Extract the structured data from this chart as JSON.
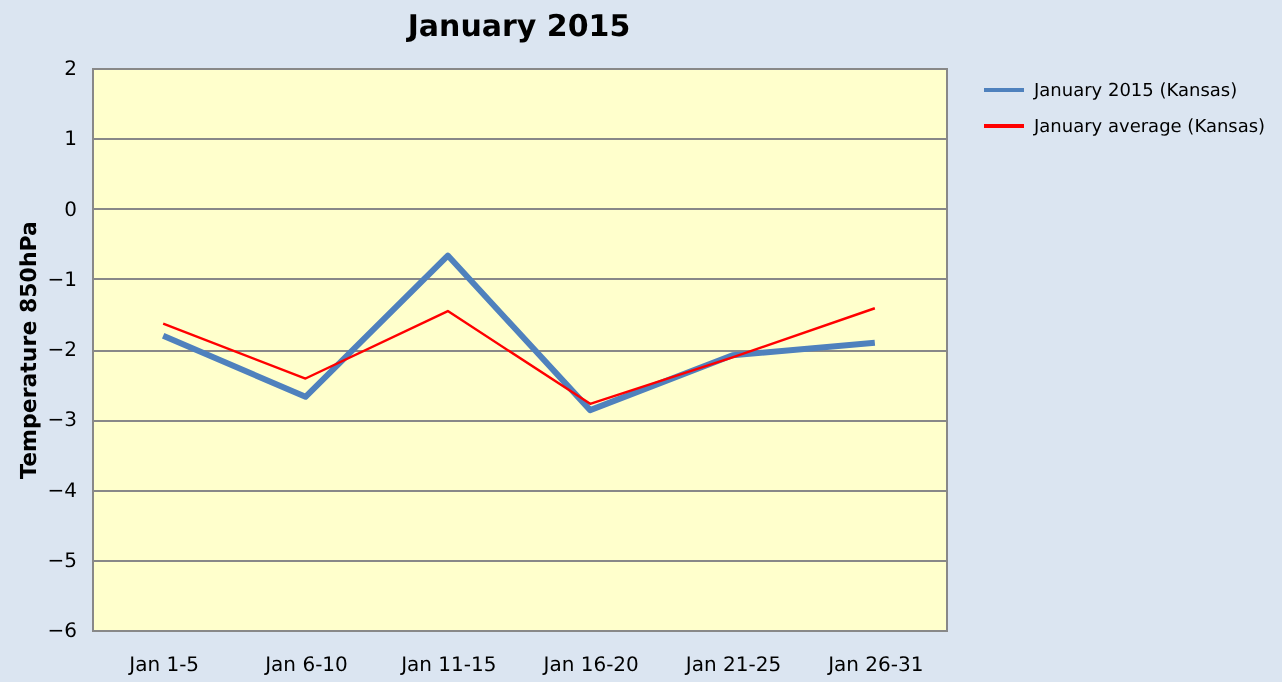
{
  "chart_data": {
    "type": "line",
    "title": "January 2015",
    "ylabel": "Temperature 850hPa",
    "categories": [
      "Jan 1-5",
      "Jan 6-10",
      "Jan 11-15",
      "Jan 16-20",
      "Jan 21-25",
      "Jan 26-31"
    ],
    "series": [
      {
        "name": "January 2015 (Kansas)",
        "color": "#4f81bd",
        "values": [
          -1.81,
          -2.68,
          -0.67,
          -2.87,
          -2.09,
          -1.91
        ]
      },
      {
        "name": "January average (Kansas)",
        "color": "#ff0000",
        "values": [
          -1.64,
          -2.42,
          -1.46,
          -2.78,
          -2.12,
          -1.42
        ]
      }
    ],
    "ylim": [
      -6,
      2
    ],
    "yticks": [
      -6,
      -5,
      -4,
      -3,
      -2,
      -1,
      0,
      1,
      2
    ],
    "grid": "y",
    "legend": "right",
    "marker": "none",
    "line_style": "solid"
  }
}
